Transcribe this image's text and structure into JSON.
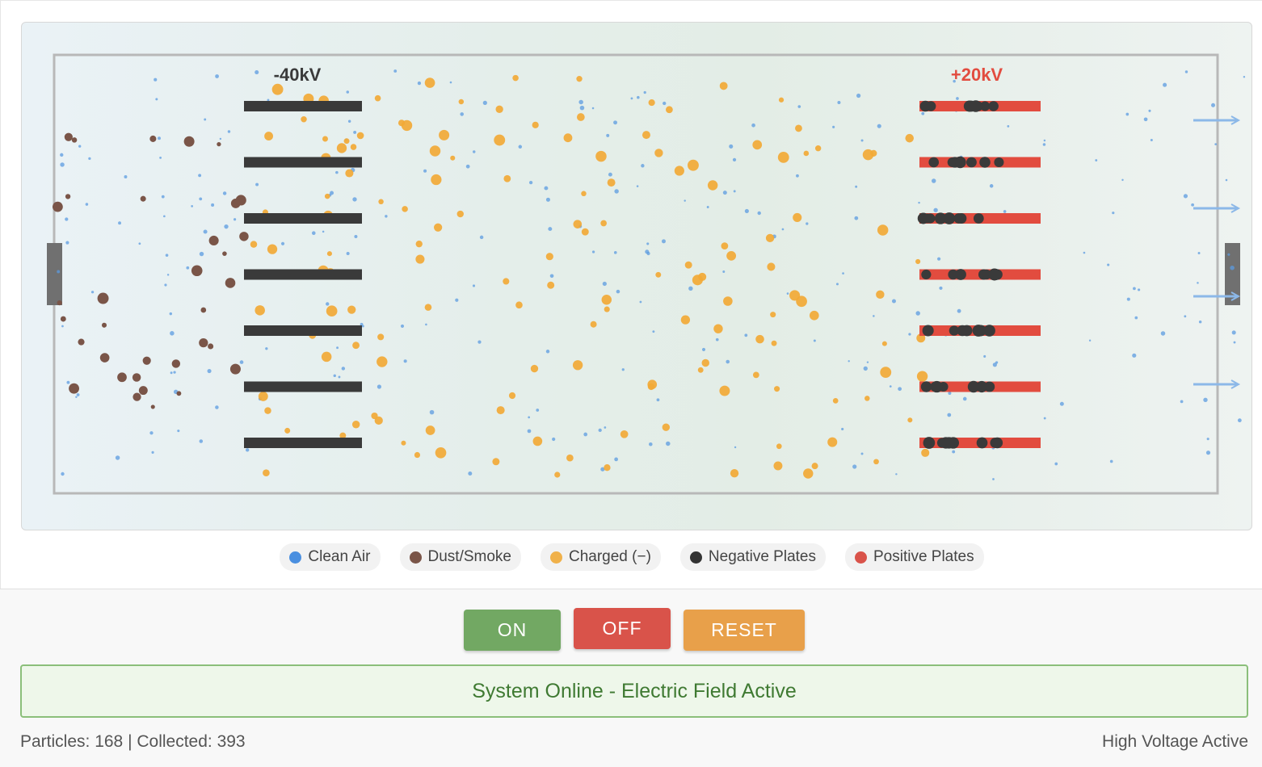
{
  "simulation": {
    "negative_voltage_label": "-40kV",
    "positive_voltage_label": "+20kV",
    "colors": {
      "clean_air": "#5b9be0",
      "dust": "#7a5548",
      "charged": "#f2a936",
      "negative_plate": "#3a3a3a",
      "positive_plate": "#e24c3f",
      "chamber_border": "#b8b8b8",
      "flow_arrow": "#8cb8e8"
    },
    "plate_count": 7
  },
  "legend": {
    "items": [
      {
        "label": "Clean Air",
        "color": "#4a8fe0"
      },
      {
        "label": "Dust/Smoke",
        "color": "#7a5548"
      },
      {
        "label": "Charged (−)",
        "color": "#f0b14a"
      },
      {
        "label": "Negative Plates",
        "color": "#333333"
      },
      {
        "label": "Positive Plates",
        "color": "#d9534a"
      }
    ]
  },
  "controls": {
    "on_label": "ON",
    "off_label": "OFF",
    "reset_label": "RESET"
  },
  "status": {
    "message": "System Online - Electric Field Active",
    "stats": "Particles: 168 | Collected: 393",
    "mode": "High Voltage Active"
  }
}
